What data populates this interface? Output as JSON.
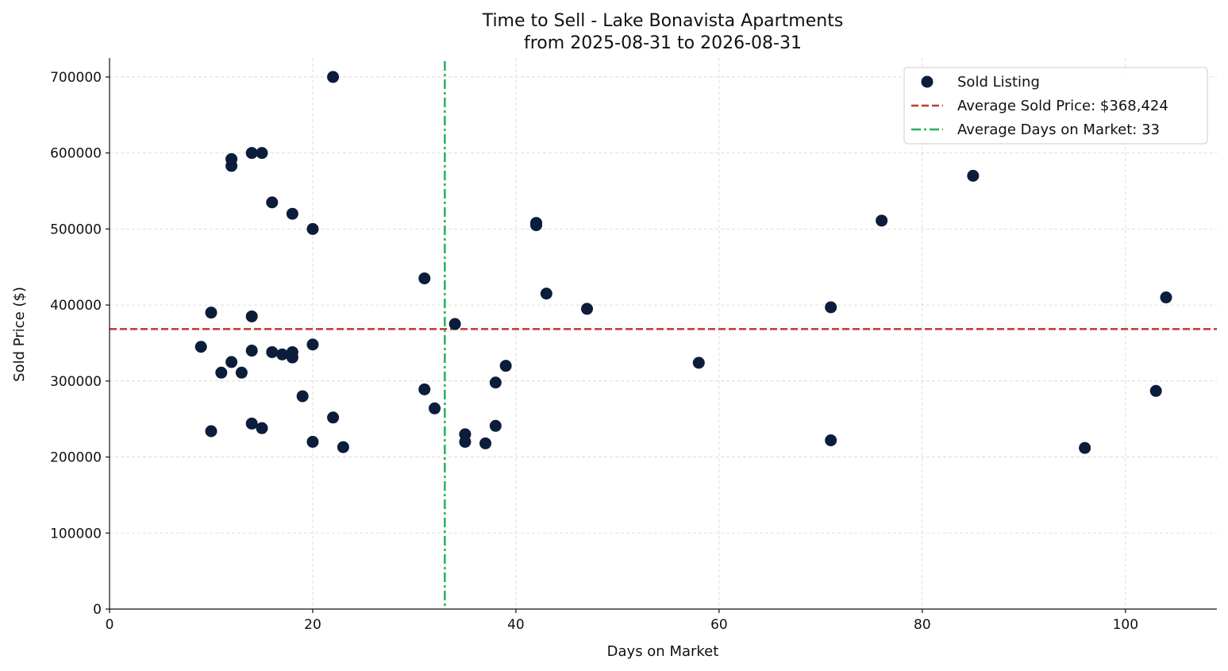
{
  "chart_data": {
    "type": "scatter",
    "title": "Time to Sell - Lake Bonavista Apartments",
    "subtitle": "from 2025-08-31 to 2026-08-31",
    "xlabel": "Days on Market",
    "ylabel": "Sold Price ($)",
    "xlim": [
      0,
      109
    ],
    "ylim": [
      0,
      725000
    ],
    "xticks": [
      0,
      20,
      40,
      60,
      80,
      100
    ],
    "yticks": [
      0,
      100000,
      200000,
      300000,
      400000,
      500000,
      600000,
      700000
    ],
    "grid": true,
    "legend_position": "top-right",
    "colors": {
      "points": "#0b1d3a",
      "avg_price": "#c0392b",
      "avg_days": "#27ae60",
      "grid": "#d6d6d6",
      "axis": "#111111"
    },
    "series": [
      {
        "name": "Sold Listing",
        "points": [
          [
            22,
            700000
          ],
          [
            12,
            592000
          ],
          [
            12,
            583000
          ],
          [
            14,
            600000
          ],
          [
            15,
            600000
          ],
          [
            16,
            535000
          ],
          [
            18,
            520000
          ],
          [
            20,
            500000
          ],
          [
            31,
            435000
          ],
          [
            10,
            390000
          ],
          [
            14,
            385000
          ],
          [
            9,
            345000
          ],
          [
            14,
            340000
          ],
          [
            16,
            338000
          ],
          [
            17,
            335000
          ],
          [
            18,
            338000
          ],
          [
            18,
            331000
          ],
          [
            20,
            348000
          ],
          [
            12,
            325000
          ],
          [
            11,
            311000
          ],
          [
            13,
            311000
          ],
          [
            19,
            280000
          ],
          [
            10,
            234000
          ],
          [
            14,
            244000
          ],
          [
            15,
            238000
          ],
          [
            20,
            220000
          ],
          [
            22,
            252000
          ],
          [
            23,
            213000
          ],
          [
            31,
            289000
          ],
          [
            32,
            264000
          ],
          [
            34,
            375000
          ],
          [
            35,
            230000
          ],
          [
            35,
            220000
          ],
          [
            37,
            218000
          ],
          [
            38,
            298000
          ],
          [
            38,
            241000
          ],
          [
            39,
            320000
          ],
          [
            42,
            508000
          ],
          [
            42,
            505000
          ],
          [
            43,
            415000
          ],
          [
            47,
            395000
          ],
          [
            58,
            324000
          ],
          [
            71,
            397000
          ],
          [
            71,
            222000
          ],
          [
            76,
            511000
          ],
          [
            85,
            570000
          ],
          [
            96,
            212000
          ],
          [
            103,
            287000
          ],
          [
            104,
            410000
          ]
        ]
      }
    ],
    "reference_lines": {
      "avg_price": {
        "label": "Average Sold Price: $368,424",
        "value": 368424
      },
      "avg_days": {
        "label": "Average Days on Market: 33",
        "value": 33
      }
    }
  }
}
